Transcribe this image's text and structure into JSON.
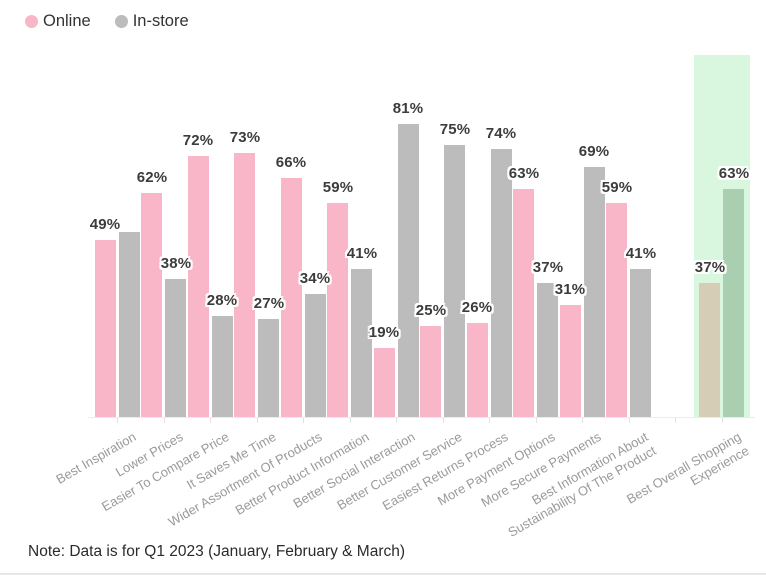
{
  "legend": {
    "items": [
      {
        "label": "Online",
        "color": "#f9b6c8"
      },
      {
        "label": "In-store",
        "color": "#bcbcbc"
      }
    ]
  },
  "note": {
    "text": "Note: Data is for Q1 2023 (January, February & March)"
  },
  "chart_data": {
    "type": "bar",
    "title": "",
    "xlabel": "",
    "ylabel": "",
    "ylim": [
      0,
      100
    ],
    "grid": false,
    "legend_position": "top-left",
    "value_suffix": "%",
    "categories": [
      "Best Inspiration",
      "Lower Prices",
      "Easier To Compare Price",
      "It Saves Me Time",
      "Wider Assortment Of Products",
      "Better Product Information",
      "Better Social Interaction",
      "Better Customer Service",
      "Easiest Returns Process",
      "More Payment Options",
      "More Secure Payments",
      "Best Information About\nSustainability Of The Product",
      "Best Overall Shopping\nExperience"
    ],
    "series": [
      {
        "name": "Online",
        "color": "#f9b6c8",
        "values": [
          49,
          62,
          72,
          73,
          66,
          59,
          19,
          25,
          26,
          63,
          31,
          59,
          37
        ],
        "labels": [
          "49%",
          "62%",
          "72%",
          "73%",
          "66%",
          "59%",
          "19%",
          "25%",
          "26%",
          "63%",
          "31%",
          "59%",
          "37%"
        ]
      },
      {
        "name": "In-store",
        "color": "#bcbcbc",
        "values": [
          51,
          38,
          28,
          27,
          34,
          41,
          81,
          75,
          74,
          37,
          69,
          41,
          63
        ],
        "labels": [
          "",
          "38%",
          "28%",
          "27%",
          "34%",
          "41%",
          "81%",
          "75%",
          "74%",
          "37%",
          "69%",
          "41%",
          "63%"
        ]
      }
    ],
    "highlight": {
      "category": "Best Overall Shopping Experience",
      "category_index": 12,
      "band_color": "#d8f7de",
      "online_bar_color": "#d6cdb7",
      "in_store_bar_color": "#a9cfb0"
    }
  }
}
